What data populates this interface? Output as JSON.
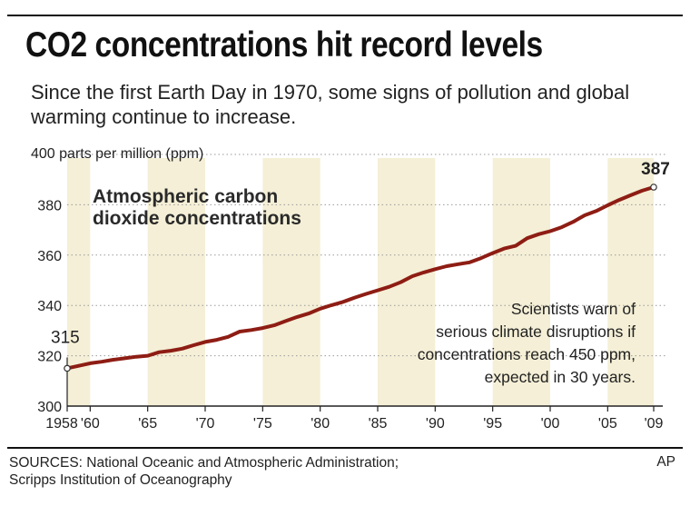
{
  "header": {
    "title": "CO2 concentrations hit record levels",
    "subtitle": "Since the first Earth Day in 1970, some signs of pollution and global warming continue to increase."
  },
  "footer": {
    "sources": [
      "SOURCES: National Oceanic and Atmospheric Administration;",
      "Scripps Institution of Oceanography"
    ],
    "credit": "AP"
  },
  "colors": {
    "line": "#8e1d14",
    "band": "#f4efd6",
    "grid": "#9a9a9a",
    "text": "#1a1a1a"
  },
  "chart_data": {
    "type": "line",
    "title": "Atmospheric carbon dioxide concentrations",
    "title_lines": [
      "Atmospheric carbon",
      "dioxide concentrations"
    ],
    "unit_label": "400 parts per million (ppm)",
    "xlabel": "",
    "ylabel": "",
    "xlim": [
      1958,
      2009
    ],
    "ylim": [
      300,
      400
    ],
    "y_ticks": [
      {
        "value": 300,
        "label": "300"
      },
      {
        "value": 320,
        "label": "320"
      },
      {
        "value": 340,
        "label": "340"
      },
      {
        "value": 360,
        "label": "360"
      },
      {
        "value": 380,
        "label": "380"
      }
    ],
    "x_ticks": [
      {
        "value": 1958,
        "label": "1958"
      },
      {
        "value": 1960,
        "label": "'60"
      },
      {
        "value": 1965,
        "label": "'65"
      },
      {
        "value": 1970,
        "label": "'70"
      },
      {
        "value": 1975,
        "label": "'75"
      },
      {
        "value": 1980,
        "label": "'80"
      },
      {
        "value": 1985,
        "label": "'85"
      },
      {
        "value": 1990,
        "label": "'90"
      },
      {
        "value": 1995,
        "label": "'95"
      },
      {
        "value": 2000,
        "label": "'00"
      },
      {
        "value": 2005,
        "label": "'05"
      },
      {
        "value": 2009,
        "label": "'09"
      }
    ],
    "bands": [
      [
        1958,
        1960
      ],
      [
        1965,
        1970
      ],
      [
        1975,
        1980
      ],
      [
        1985,
        1990
      ],
      [
        1995,
        2000
      ],
      [
        2005,
        2009
      ]
    ],
    "grid": true,
    "grid_style": "dotted horizontal",
    "series": [
      {
        "x": [
          1958,
          1959,
          1960,
          1961,
          1962,
          1963,
          1964,
          1965,
          1966,
          1967,
          1968,
          1969,
          1970,
          1971,
          1972,
          1973,
          1974,
          1975,
          1976,
          1977,
          1978,
          1979,
          1980,
          1981,
          1982,
          1983,
          1984,
          1985,
          1986,
          1987,
          1988,
          1989,
          1990,
          1991,
          1992,
          1993,
          1994,
          1995,
          1996,
          1997,
          1998,
          1999,
          2000,
          2001,
          2002,
          2003,
          2004,
          2005,
          2006,
          2007,
          2008,
          2009
        ],
        "values": [
          315,
          316,
          317,
          317.6,
          318.4,
          319,
          319.6,
          320,
          321.4,
          322,
          322.8,
          324.2,
          325.5,
          326.3,
          327.5,
          329.6,
          330.2,
          331,
          332.1,
          333.8,
          335.4,
          336.8,
          338.7,
          340.1,
          341.4,
          343.1,
          344.6,
          346,
          347.4,
          349.2,
          351.6,
          353.1,
          354.4,
          355.6,
          356.4,
          357.1,
          358.8,
          360.8,
          362.6,
          363.7,
          366.7,
          368.3,
          369.5,
          371.1,
          373.2,
          375.8,
          377.5,
          379.8,
          381.9,
          383.8,
          385.6,
          387
        ]
      }
    ],
    "start_label": {
      "x": 1958,
      "value": 315,
      "text": "315"
    },
    "end_label": {
      "x": 2009,
      "value": 387,
      "text": "387"
    },
    "annotation": [
      "Scientists warn of",
      "serious climate disruptions if",
      "concentrations reach 450 ppm,",
      "expected in 30 years."
    ]
  }
}
